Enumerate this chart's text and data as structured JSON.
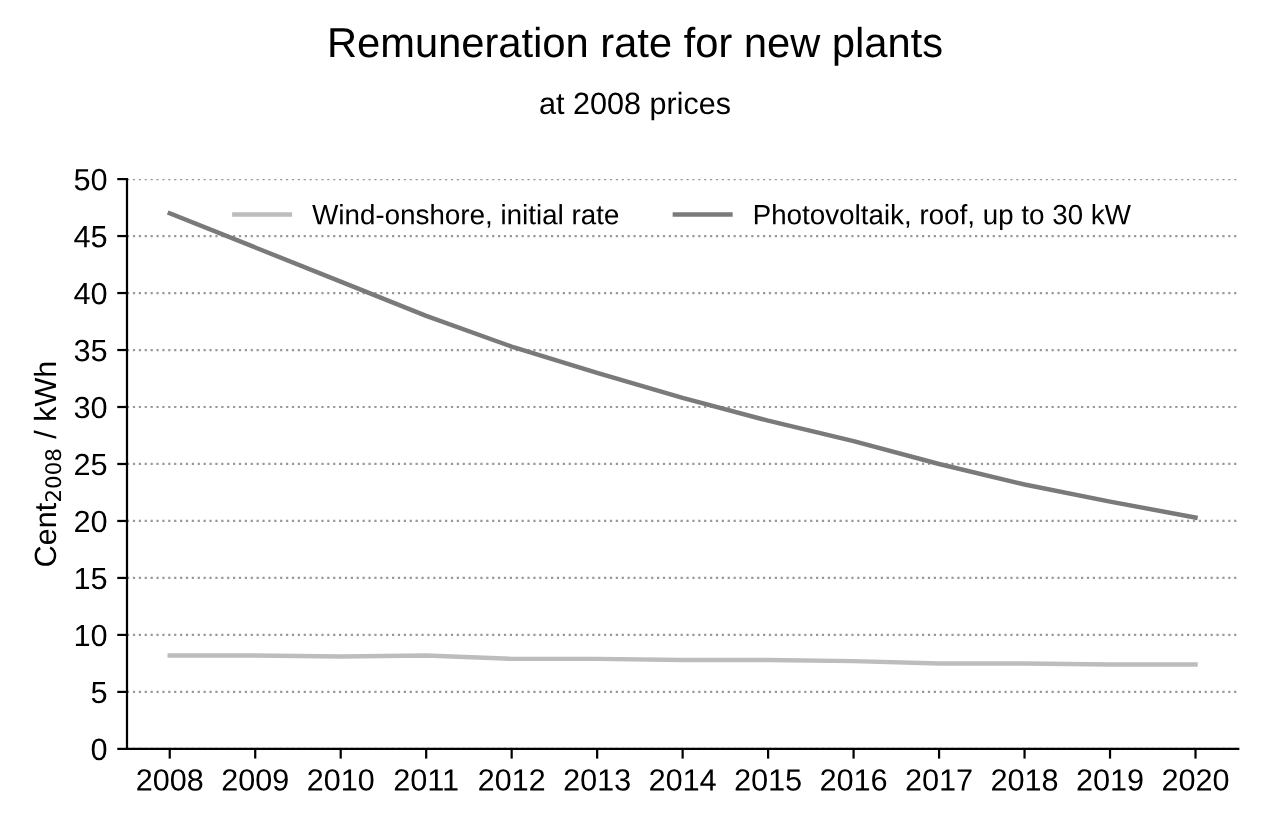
{
  "chart_data": {
    "type": "line",
    "title": "Remuneration rate for new plants",
    "subtitle": "at 2008 prices",
    "ylabel": "Cent$_{2008}$ / kWh",
    "categories": [
      "2008",
      "2009",
      "2010",
      "2011",
      "2012",
      "2013",
      "2014",
      "2015",
      "2016",
      "2017",
      "2018",
      "2019",
      "2020"
    ],
    "series": [
      {
        "name": "Wind-onshore, initial rate",
        "color": "#bdbdbd",
        "values": [
          8.2,
          8.2,
          8.1,
          8.2,
          7.9,
          7.9,
          7.8,
          7.8,
          7.7,
          7.5,
          7.5,
          7.4,
          7.4
        ]
      },
      {
        "name": "Photovoltaik, roof, up to 30 kW",
        "color": "#7a7a7a",
        "values": [
          47,
          44,
          41,
          38,
          35.3,
          33,
          30.8,
          28.8,
          27,
          25,
          23.2,
          21.7,
          20.3
        ]
      }
    ],
    "ylim": [
      0,
      50
    ],
    "yticks": [
      0,
      5,
      10,
      15,
      20,
      25,
      30,
      35,
      40,
      45,
      50
    ],
    "grid": "y",
    "legend": "top",
    "marker": "none",
    "line_style": "solid"
  }
}
